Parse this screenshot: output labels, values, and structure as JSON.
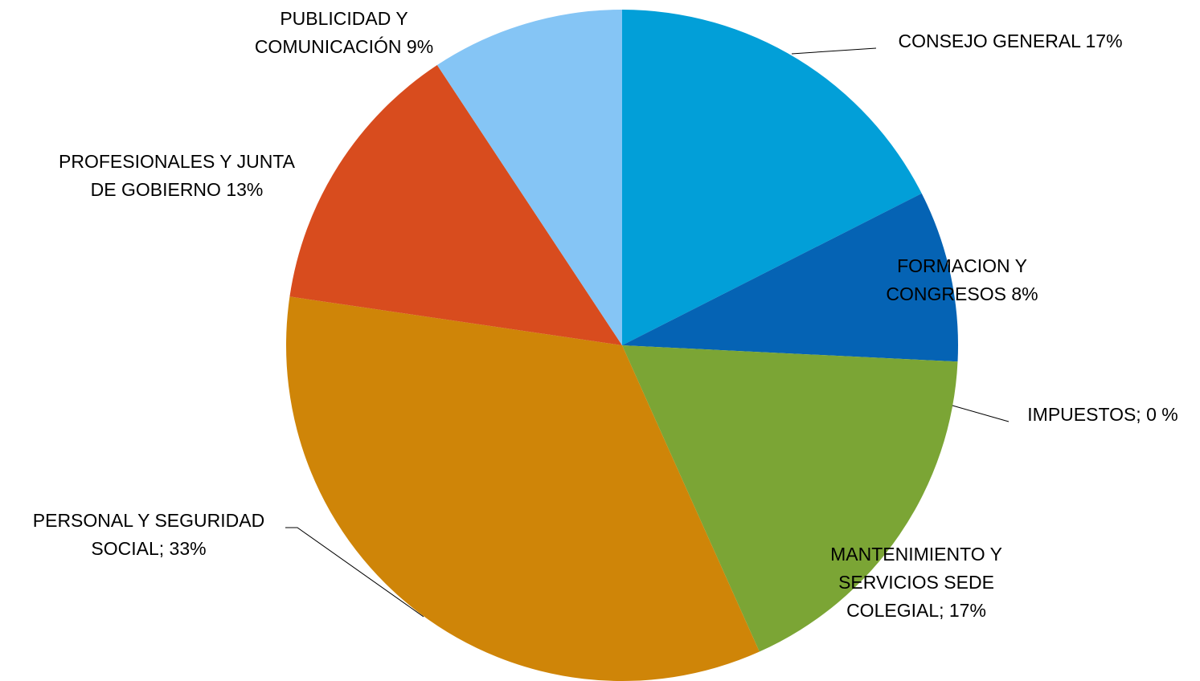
{
  "chart_data": {
    "type": "pie",
    "labels": [
      [
        "CONSEJO GENERAL 17%"
      ],
      [
        "FORMACION Y",
        "CONGRESOS 8%"
      ],
      [
        "IMPUESTOS; 0 %"
      ],
      [
        "MANTENIMIENTO Y",
        "SERVICIOS SEDE",
        "COLEGIAL; 17%"
      ],
      [
        "PERSONAL Y SEGURIDAD",
        "SOCIAL; 33%"
      ],
      [
        "PROFESIONALES Y JUNTA",
        "DE GOBIERNO 13%"
      ],
      [
        "PUBLICIDAD Y",
        "COMUNICACIÓN 9%"
      ]
    ],
    "values": [
      17,
      8,
      0,
      17,
      33,
      13,
      9
    ],
    "colors": [
      "#029fd8",
      "#0563b4",
      "#1b9cb2",
      "#7ba535",
      "#cf8508",
      "#d84c1e",
      "#85c5f5"
    ]
  }
}
